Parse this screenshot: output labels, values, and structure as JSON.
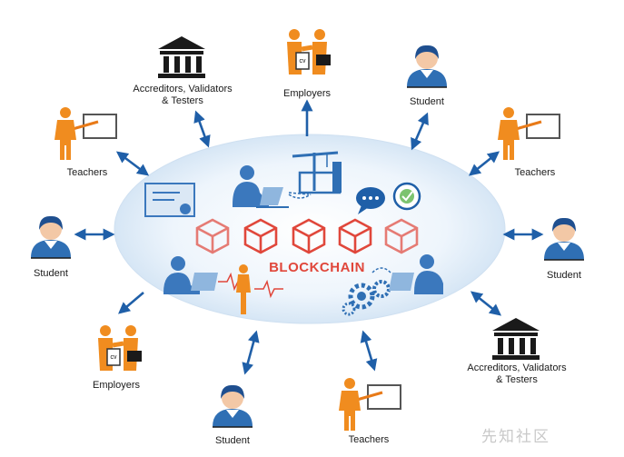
{
  "center": {
    "title": "BLOCKCHAIN",
    "colors": {
      "ellipse": "#e4effa",
      "block": "#e0473b",
      "accent": "#2f6fb4",
      "person": "#f08c1f"
    }
  },
  "nodes": [
    {
      "id": "accreditors-top",
      "label_lines": [
        "Accreditors, Validators",
        "& Testers"
      ],
      "icon": "bank-icon"
    },
    {
      "id": "employers-top",
      "label_lines": [
        "Employers"
      ],
      "icon": "handshake-cv-icon"
    },
    {
      "id": "student-top-right",
      "label_lines": [
        "Student"
      ],
      "icon": "student-icon"
    },
    {
      "id": "teachers-top-left",
      "label_lines": [
        "Teachers"
      ],
      "icon": "teacher-icon"
    },
    {
      "id": "teachers-top-right",
      "label_lines": [
        "Teachers"
      ],
      "icon": "teacher-icon"
    },
    {
      "id": "student-left",
      "label_lines": [
        "Student"
      ],
      "icon": "student-icon"
    },
    {
      "id": "student-right",
      "label_lines": [
        "Student"
      ],
      "icon": "student-icon"
    },
    {
      "id": "employers-bottom-left",
      "label_lines": [
        "Employers"
      ],
      "icon": "handshake-cv-icon"
    },
    {
      "id": "accreditors-bottom-right",
      "label_lines": [
        "Accreditors, Validators",
        "& Testers"
      ],
      "icon": "bank-icon"
    },
    {
      "id": "student-bottom",
      "label_lines": [
        "Student"
      ],
      "icon": "student-icon"
    },
    {
      "id": "teachers-bottom",
      "label_lines": [
        "Teachers"
      ],
      "icon": "teacher-icon"
    }
  ],
  "watermark": "先知社区"
}
